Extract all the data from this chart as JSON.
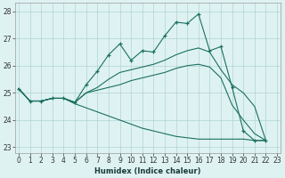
{
  "xlabel": "Humidex (Indice chaleur)",
  "bg_color": "#dff2f2",
  "grid_color": "#aed4d4",
  "line_color": "#1a7060",
  "xlim": [
    -0.3,
    23.3
  ],
  "ylim": [
    22.8,
    28.3
  ],
  "xticks": [
    0,
    1,
    2,
    3,
    4,
    5,
    6,
    7,
    8,
    9,
    10,
    11,
    12,
    13,
    14,
    15,
    16,
    17,
    18,
    19,
    20,
    21,
    22,
    23
  ],
  "yticks": [
    23,
    24,
    25,
    26,
    27,
    28
  ],
  "series": [
    {
      "x": [
        0,
        1,
        2,
        3,
        4,
        5,
        6,
        7,
        8,
        9,
        10,
        11,
        12,
        13,
        14,
        15,
        16,
        17,
        18,
        19,
        20,
        21,
        22
      ],
      "y": [
        25.15,
        24.7,
        24.7,
        24.8,
        24.8,
        24.65,
        25.3,
        25.8,
        26.4,
        26.8,
        26.2,
        26.55,
        26.5,
        27.1,
        27.6,
        27.55,
        27.9,
        26.55,
        26.7,
        25.2,
        23.6,
        23.25,
        23.25
      ],
      "marker": true
    },
    {
      "x": [
        0,
        1,
        2,
        3,
        4,
        5,
        6,
        7,
        8,
        9,
        10,
        11,
        12,
        13,
        14,
        15,
        16,
        17,
        18,
        19,
        20,
        21,
        22
      ],
      "y": [
        25.15,
        24.7,
        24.7,
        24.8,
        24.8,
        24.65,
        25.0,
        25.2,
        25.5,
        25.75,
        25.85,
        25.95,
        26.05,
        26.2,
        26.4,
        26.55,
        26.65,
        26.5,
        25.85,
        25.3,
        25.0,
        24.5,
        23.25
      ],
      "marker": false
    },
    {
      "x": [
        0,
        1,
        2,
        3,
        4,
        5,
        6,
        7,
        8,
        9,
        10,
        11,
        12,
        13,
        14,
        15,
        16,
        17,
        18,
        19,
        20,
        21,
        22
      ],
      "y": [
        25.15,
        24.7,
        24.7,
        24.8,
        24.8,
        24.65,
        25.0,
        25.1,
        25.2,
        25.3,
        25.45,
        25.55,
        25.65,
        25.75,
        25.9,
        26.0,
        26.05,
        25.95,
        25.55,
        24.55,
        24.0,
        23.5,
        23.25
      ],
      "marker": false
    },
    {
      "x": [
        0,
        1,
        2,
        3,
        4,
        5,
        6,
        7,
        8,
        9,
        10,
        11,
        12,
        13,
        14,
        15,
        16,
        17,
        18,
        19,
        20,
        21,
        22
      ],
      "y": [
        25.15,
        24.7,
        24.7,
        24.8,
        24.8,
        24.6,
        24.45,
        24.3,
        24.15,
        24.0,
        23.85,
        23.7,
        23.6,
        23.5,
        23.4,
        23.35,
        23.3,
        23.3,
        23.3,
        23.3,
        23.3,
        23.25,
        23.25
      ],
      "marker": false
    }
  ],
  "tick_fontsize": 5.5,
  "xlabel_fontsize": 6.0,
  "marker_size": 3.5,
  "linewidth": 0.8
}
